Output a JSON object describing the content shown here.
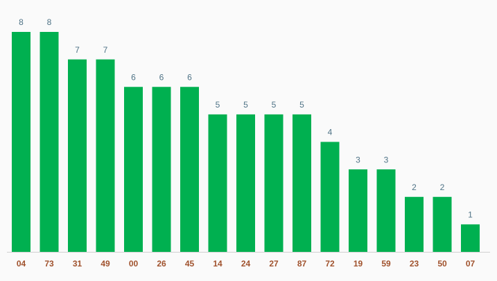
{
  "chart_data": {
    "type": "bar",
    "categories": [
      "04",
      "73",
      "31",
      "49",
      "00",
      "26",
      "45",
      "14",
      "24",
      "27",
      "87",
      "72",
      "19",
      "59",
      "23",
      "50",
      "07"
    ],
    "values": [
      8,
      8,
      7,
      7,
      6,
      6,
      6,
      5,
      5,
      5,
      5,
      4,
      3,
      3,
      2,
      2,
      1
    ],
    "color": "#00b050"
  }
}
